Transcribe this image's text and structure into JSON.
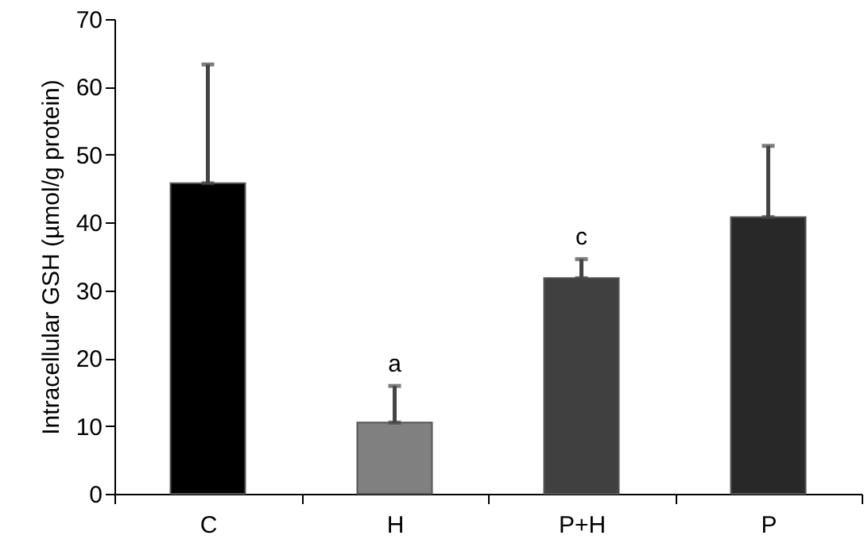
{
  "chart_data": {
    "type": "bar",
    "ylabel": "Intracellular GSH (µmol/g protein)",
    "categories": [
      "C",
      "H",
      "P+H",
      "P"
    ],
    "values": [
      45.8,
      10.5,
      31.8,
      40.8
    ],
    "colors": [
      "#000000",
      "#808080",
      "#404040",
      "#282828"
    ],
    "errors": [
      [
        45.8,
        63.3
      ],
      [
        10.5,
        15.9
      ],
      [
        31.8,
        34.6
      ],
      [
        40.8,
        51.3
      ]
    ],
    "ylim": [
      0,
      70
    ],
    "yticks": [
      0,
      10,
      20,
      30,
      40,
      50,
      60,
      70
    ],
    "grid": false,
    "annotations": [
      {
        "text": "a",
        "x": "H",
        "y": 15.9
      },
      {
        "text": "c",
        "x": "P+H",
        "y": 34.6
      }
    ]
  }
}
